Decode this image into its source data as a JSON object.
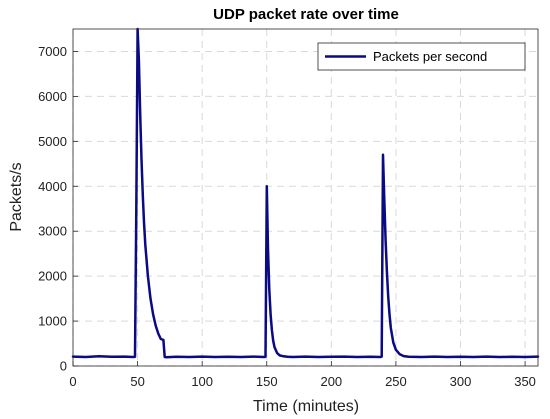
{
  "chart_data": {
    "type": "line",
    "title": "UDP packet rate over time",
    "xlabel": "Time (minutes)",
    "ylabel": "Packets/s",
    "xlim": [
      0,
      360
    ],
    "ylim": [
      0,
      7500
    ],
    "xticks": [
      0,
      50,
      100,
      150,
      200,
      250,
      300,
      350
    ],
    "yticks": [
      0,
      1000,
      2000,
      3000,
      4000,
      5000,
      6000,
      7000
    ],
    "grid": true,
    "legend": "top-right",
    "series": [
      {
        "name": "Packets per second",
        "color": "#0a0a82",
        "x": [
          0,
          10,
          20,
          30,
          40,
          47,
          48,
          49,
          50,
          51,
          52,
          53,
          54,
          55,
          56,
          58,
          60,
          62,
          64,
          66,
          68,
          70,
          71,
          72,
          80,
          90,
          100,
          110,
          120,
          130,
          140,
          148,
          149,
          150,
          151,
          152,
          153,
          154,
          155,
          156,
          158,
          160,
          163,
          166,
          170,
          180,
          190,
          200,
          210,
          220,
          230,
          238,
          239,
          240,
          241,
          242,
          243,
          244,
          245,
          246,
          248,
          250,
          253,
          256,
          260,
          270,
          280,
          290,
          300,
          310,
          320,
          330,
          340,
          350,
          360
        ],
        "y": [
          210,
          200,
          215,
          205,
          210,
          200,
          205,
          3500,
          7500,
          6800,
          5600,
          4600,
          3800,
          3200,
          2700,
          2000,
          1500,
          1150,
          900,
          720,
          600,
          580,
          200,
          195,
          205,
          200,
          210,
          200,
          205,
          200,
          210,
          200,
          205,
          4000,
          2600,
          1700,
          1150,
          800,
          560,
          420,
          290,
          235,
          215,
          205,
          200,
          210,
          200,
          205,
          210,
          200,
          205,
          200,
          210,
          4700,
          3700,
          2800,
          2100,
          1550,
          1150,
          850,
          520,
          360,
          260,
          220,
          205,
          200,
          210,
          200,
          205,
          200,
          210,
          200,
          205,
          200,
          210
        ]
      }
    ]
  }
}
